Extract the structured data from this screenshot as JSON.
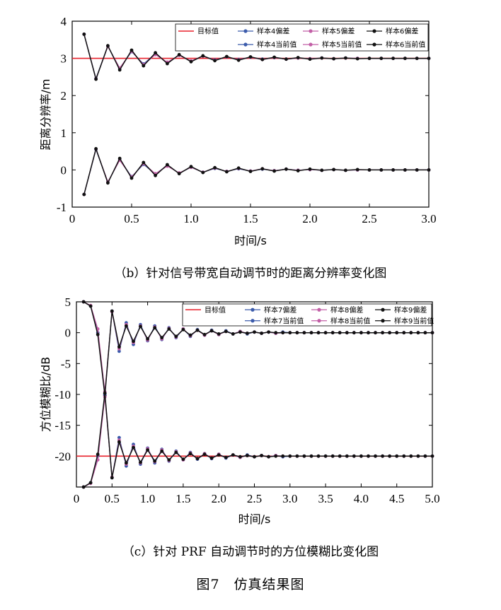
{
  "figure_title": "图7　仿真结果图",
  "chart_data": [
    {
      "type": "line",
      "caption": "（b）针对信号带宽自动调节时的距离分辨率变化图",
      "xlabel": "时间/s",
      "ylabel": "距离分辨率/m",
      "xlim": [
        0,
        3.0
      ],
      "ylim": [
        -1,
        4
      ],
      "xticks": [
        "0",
        "0.5",
        "1.0",
        "1.5",
        "2.0",
        "2.5",
        "3.0"
      ],
      "yticks": [
        "-1",
        "0",
        "1",
        "2",
        "3",
        "4"
      ],
      "legend_position": "top-right",
      "legend_entries": [
        "目标值",
        "样本4偏差",
        "样本5偏差",
        "样本6偏差",
        "样本4当前值",
        "样本5当前值",
        "样本6当前值"
      ],
      "target": {
        "name": "目标值",
        "value": 3.0,
        "color": "#e8212b"
      },
      "x": [
        0.1,
        0.2,
        0.3,
        0.4,
        0.5,
        0.6,
        0.7,
        0.8,
        0.9,
        1.0,
        1.1,
        1.2,
        1.3,
        1.4,
        1.5,
        1.6,
        1.7,
        1.8,
        1.9,
        2.0,
        2.1,
        2.2,
        2.3,
        2.4,
        2.5,
        2.6,
        2.7,
        2.8,
        2.9,
        3.0
      ],
      "series": [
        {
          "name": "样本4偏差",
          "kind": "bias",
          "color": "#3b5bab",
          "values": [
            -0.66,
            0.55,
            -0.33,
            0.27,
            -0.18,
            0.15,
            -0.11,
            0.12,
            -0.09,
            0.07,
            -0.06,
            0.04,
            -0.04,
            0.03,
            -0.03,
            0.02,
            -0.02,
            0.02,
            -0.01,
            0.01,
            -0.01,
            0.01,
            -0.01,
            0.0,
            0.0,
            0.0,
            0.0,
            0.0,
            0.0,
            0.0
          ]
        },
        {
          "name": "样本5偏差",
          "kind": "bias",
          "color": "#c25fa6",
          "values": [
            -0.66,
            0.56,
            -0.32,
            0.26,
            -0.19,
            0.17,
            -0.1,
            0.1,
            -0.08,
            0.07,
            -0.06,
            0.05,
            -0.04,
            0.04,
            -0.03,
            0.03,
            -0.02,
            0.02,
            -0.01,
            0.01,
            -0.01,
            0.01,
            -0.01,
            0.0,
            0.0,
            0.0,
            0.0,
            0.0,
            0.0,
            0.0
          ]
        },
        {
          "name": "样本6偏差",
          "kind": "bias",
          "color": "#111111",
          "values": [
            -0.66,
            0.57,
            -0.35,
            0.31,
            -0.22,
            0.2,
            -0.15,
            0.14,
            -0.1,
            0.09,
            -0.07,
            0.06,
            -0.05,
            0.05,
            -0.04,
            0.03,
            -0.03,
            0.02,
            -0.02,
            0.02,
            -0.01,
            0.01,
            -0.01,
            0.01,
            0.0,
            0.0,
            0.0,
            0.0,
            0.0,
            0.0
          ]
        },
        {
          "name": "样本4当前值",
          "kind": "current",
          "color": "#3b5bab",
          "values": [
            3.65,
            2.46,
            3.33,
            2.73,
            3.18,
            2.85,
            3.12,
            2.88,
            3.09,
            2.93,
            3.06,
            2.96,
            3.04,
            2.97,
            3.03,
            2.98,
            3.02,
            2.98,
            3.01,
            2.99,
            3.01,
            2.99,
            3.01,
            3.0,
            3.0,
            3.0,
            3.0,
            3.0,
            3.0,
            3.0
          ]
        },
        {
          "name": "样本5当前值",
          "kind": "current",
          "color": "#c25fa6",
          "values": [
            3.65,
            2.45,
            3.32,
            2.74,
            3.19,
            2.83,
            3.1,
            2.9,
            3.08,
            2.93,
            3.06,
            2.95,
            3.04,
            2.96,
            3.03,
            2.97,
            3.02,
            2.98,
            3.01,
            2.99,
            3.01,
            2.99,
            3.01,
            3.0,
            3.0,
            3.0,
            3.0,
            3.0,
            3.0,
            3.0
          ]
        },
        {
          "name": "样本6当前值",
          "kind": "current",
          "color": "#111111",
          "values": [
            3.65,
            2.44,
            3.34,
            2.69,
            3.22,
            2.8,
            3.15,
            2.86,
            3.1,
            2.91,
            3.07,
            2.94,
            3.05,
            2.95,
            3.04,
            2.97,
            3.03,
            2.98,
            3.02,
            2.98,
            3.01,
            2.99,
            3.01,
            2.99,
            3.0,
            3.0,
            3.0,
            3.0,
            3.0,
            3.0
          ]
        }
      ]
    },
    {
      "type": "line",
      "caption": "（c）针对 PRF 自动调节时的方位模糊比变化图",
      "xlabel": "时间/s",
      "ylabel": "方位模糊比/dB",
      "xlim": [
        0,
        5.0
      ],
      "ylim": [
        -25,
        5
      ],
      "xticks": [
        "0",
        "0.5",
        "1.0",
        "1.5",
        "2.0",
        "2.5",
        "3.0",
        "3.5",
        "4.0",
        "4.5",
        "5.0"
      ],
      "yticks": [
        "5",
        "0",
        "-5",
        "-10",
        "-15",
        "-20"
      ],
      "ytick_values": [
        5,
        0,
        -5,
        -10,
        -15,
        -20
      ],
      "legend_position": "top-right",
      "legend_entries": [
        "目标值",
        "样本7偏差",
        "样本8偏差",
        "样本9偏差",
        "样本7当前值",
        "样本8当前值",
        "样本9当前值"
      ],
      "target": {
        "name": "目标值",
        "value": -20,
        "color": "#e8212b"
      },
      "x": [
        0.1,
        0.2,
        0.3,
        0.4,
        0.5,
        0.6,
        0.7,
        0.8,
        0.9,
        1.0,
        1.1,
        1.2,
        1.3,
        1.4,
        1.5,
        1.6,
        1.7,
        1.8,
        1.9,
        2.0,
        2.1,
        2.2,
        2.3,
        2.4,
        2.5,
        2.6,
        2.7,
        2.8,
        2.9,
        3.0,
        3.1,
        3.2,
        3.3,
        3.4,
        3.5,
        3.6,
        3.7,
        3.8,
        3.9,
        4.0,
        4.1,
        4.2,
        4.3,
        4.4,
        4.5,
        4.6,
        4.7,
        4.8,
        4.9,
        5.0
      ],
      "series": [
        {
          "name": "样本7偏差",
          "kind": "bias",
          "color": "#3b5bab",
          "values": [
            5.0,
            4.3,
            0.0,
            -10.0,
            3.5,
            -3.0,
            1.6,
            -1.9,
            1.3,
            -1.3,
            1.1,
            -1.1,
            0.8,
            -0.8,
            0.6,
            -0.6,
            0.5,
            -0.4,
            0.4,
            -0.3,
            0.3,
            -0.2,
            0.2,
            -0.2,
            0.1,
            -0.1,
            0.1,
            -0.1,
            0.1,
            0.0,
            0.0,
            0.0,
            0.0,
            0.0,
            0.0,
            0.0,
            0.0,
            0.0,
            0.0,
            0.0,
            0.0,
            0.0,
            0.0,
            0.0,
            0.0,
            0.0,
            0.0,
            0.0,
            0.0,
            0.0
          ]
        },
        {
          "name": "样本8偏差",
          "kind": "bias",
          "color": "#c25fa6",
          "values": [
            5.0,
            4.4,
            0.6,
            -9.6,
            3.4,
            -2.6,
            1.3,
            -1.6,
            1.1,
            -1.2,
            0.9,
            -1.0,
            0.7,
            -0.7,
            0.6,
            -0.5,
            0.4,
            -0.4,
            0.3,
            -0.3,
            0.2,
            -0.2,
            0.2,
            -0.1,
            0.1,
            -0.1,
            0.1,
            -0.1,
            0.0,
            0.0,
            0.0,
            0.0,
            0.0,
            0.0,
            0.0,
            0.0,
            0.0,
            0.0,
            0.0,
            0.0,
            0.0,
            0.0,
            0.0,
            0.0,
            0.0,
            0.0,
            0.0,
            0.0,
            0.0,
            0.0
          ]
        },
        {
          "name": "样本9偏差",
          "kind": "bias",
          "color": "#111111",
          "values": [
            5.0,
            4.3,
            -0.3,
            -10.2,
            3.5,
            -2.3,
            1.1,
            -1.4,
            1.0,
            -1.0,
            0.8,
            -0.8,
            0.6,
            -0.6,
            0.5,
            -0.4,
            0.4,
            -0.3,
            0.3,
            -0.2,
            0.2,
            -0.2,
            0.1,
            -0.1,
            0.1,
            -0.1,
            0.1,
            0.0,
            0.0,
            0.0,
            0.0,
            0.0,
            0.0,
            0.0,
            0.0,
            0.0,
            0.0,
            0.0,
            0.0,
            0.0,
            0.0,
            0.0,
            0.0,
            0.0,
            0.0,
            0.0,
            0.0,
            0.0,
            0.0,
            0.0
          ]
        },
        {
          "name": "样本7当前值",
          "kind": "current",
          "color": "#3b5bab",
          "values": [
            -25.0,
            -24.3,
            -20.0,
            -10.0,
            -23.5,
            -17.0,
            -21.6,
            -18.1,
            -21.3,
            -18.7,
            -21.1,
            -18.9,
            -20.8,
            -19.2,
            -20.6,
            -19.4,
            -20.5,
            -19.6,
            -20.4,
            -19.7,
            -20.3,
            -19.8,
            -20.2,
            -19.8,
            -20.1,
            -19.9,
            -20.1,
            -19.9,
            -20.1,
            -20.0,
            -20.0,
            -20.0,
            -20.0,
            -20.0,
            -20.0,
            -20.0,
            -20.0,
            -20.0,
            -20.0,
            -20.0,
            -20.0,
            -20.0,
            -20.0,
            -20.0,
            -20.0,
            -20.0,
            -20.0,
            -20.0,
            -20.0,
            -20.0
          ]
        },
        {
          "name": "样本8当前值",
          "kind": "current",
          "color": "#c25fa6",
          "values": [
            -25.0,
            -24.4,
            -20.6,
            -10.4,
            -23.4,
            -17.4,
            -21.3,
            -18.4,
            -21.1,
            -18.8,
            -20.9,
            -19.0,
            -20.7,
            -19.3,
            -20.6,
            -19.5,
            -20.4,
            -19.6,
            -20.3,
            -19.7,
            -20.2,
            -19.8,
            -20.2,
            -19.9,
            -20.1,
            -19.9,
            -20.1,
            -19.9,
            -20.0,
            -20.0,
            -20.0,
            -20.0,
            -20.0,
            -20.0,
            -20.0,
            -20.0,
            -20.0,
            -20.0,
            -20.0,
            -20.0,
            -20.0,
            -20.0,
            -20.0,
            -20.0,
            -20.0,
            -20.0,
            -20.0,
            -20.0,
            -20.0,
            -20.0
          ]
        },
        {
          "name": "样本9当前值",
          "kind": "current",
          "color": "#111111",
          "values": [
            -25.0,
            -24.3,
            -19.7,
            -9.8,
            -23.5,
            -17.7,
            -21.1,
            -18.6,
            -21.0,
            -19.0,
            -20.8,
            -19.2,
            -20.6,
            -19.4,
            -20.5,
            -19.6,
            -20.4,
            -19.7,
            -20.3,
            -19.8,
            -20.2,
            -19.8,
            -20.1,
            -19.9,
            -20.1,
            -19.9,
            -20.1,
            -20.0,
            -20.0,
            -20.0,
            -20.0,
            -20.0,
            -20.0,
            -20.0,
            -20.0,
            -20.0,
            -20.0,
            -20.0,
            -20.0,
            -20.0,
            -20.0,
            -20.0,
            -20.0,
            -20.0,
            -20.0,
            -20.0,
            -20.0,
            -20.0,
            -20.0,
            -20.0
          ]
        }
      ]
    }
  ]
}
